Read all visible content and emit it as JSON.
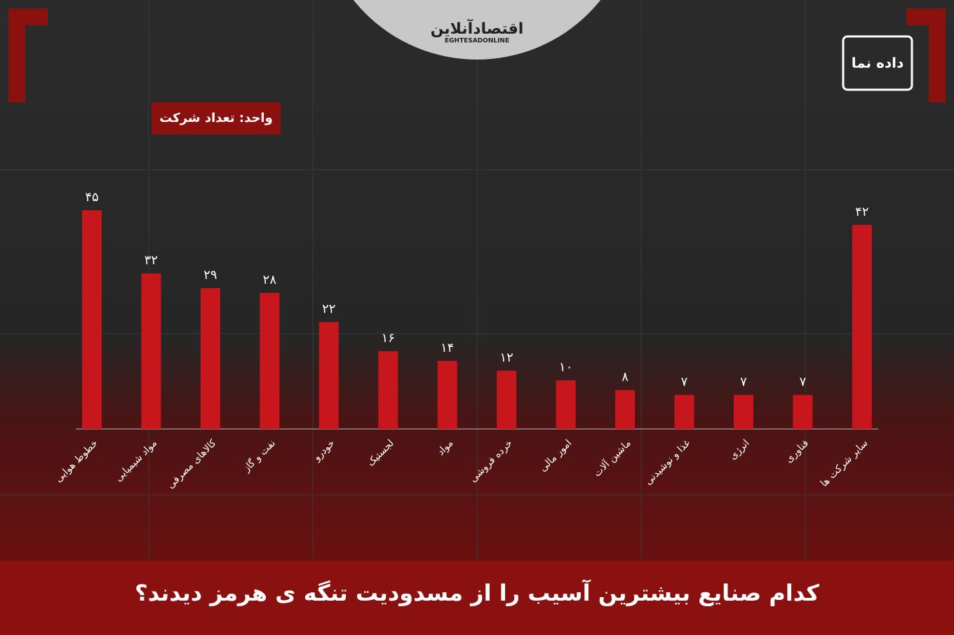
{
  "chart_data": {
    "type": "bar",
    "title": "کدام صنایع بیشترین آسیب را از مسدودیت تنگه ی هرمز دیدند؟",
    "unit_label": "واحد: تعداد شرکت",
    "logo": "اقتصادآنلاین",
    "logo_latin": "EGHTESADONLINE",
    "brand": "داده نما",
    "categories": [
      "خطوط هوایی",
      "مواد شیمیایی",
      "کالاهای مصرفی",
      "نفت و گاز",
      "خودرو",
      "لجستیک",
      "مواد",
      "خرده فروشی",
      "امور مالی",
      "ماشین آلات",
      "غذا و نوشیدنی",
      "انرژی",
      "فناوری",
      "سایر شرکت ها"
    ],
    "values": [
      45,
      32,
      29,
      28,
      22,
      16,
      14,
      12,
      10,
      8,
      7,
      7,
      7,
      42
    ],
    "value_labels": [
      "۴۵",
      "۳۲",
      "۲۹",
      "۲۸",
      "۲۲",
      "۱۶",
      "۱۴",
      "۱۲",
      "۱۰",
      "۸",
      "۷",
      "۷",
      "۷",
      "۴۲"
    ],
    "color": "#c8161d"
  }
}
